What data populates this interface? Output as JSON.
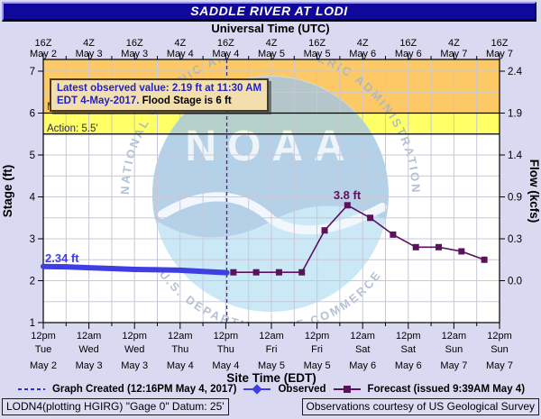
{
  "header": {
    "title": "SADDLE RIVER AT LODI",
    "subtitle": "Universal Time (UTC)"
  },
  "info_box": {
    "line1": "Latest observed value: 2.19 ft at 11:30 AM",
    "line2_highlight": "EDT 4-May-2017.",
    "line2_rest": "Flood Stage is 6 ft"
  },
  "watermark": {
    "acronym": "NOAA",
    "arc_top": "NATIONAL OCEANIC AND ATMOSPHERIC ADMINISTRATION",
    "arc_bottom": "U.S. DEPARTMENT OF COMMERCE"
  },
  "legend": {
    "created": "Graph Created (12:16PM May 4, 2017)",
    "observed": "Observed",
    "forecast": "Forecast (issued 9:39AM May 4)"
  },
  "footer": {
    "left": "LODN4(plotting HGIRG) \"Gage 0\" Datum: 25'",
    "right": "Observations courtesy of US Geological Survey"
  },
  "chart_data": {
    "type": "line",
    "title": "SADDLE RIVER AT LODI",
    "top_axis_label": "Universal Time (UTC)",
    "bottom_axis_label": "Site Time (EDT)",
    "left_axis_label": "Stage (ft)",
    "right_axis_label": "Flow (kcfs)",
    "x_unit": "hours since 12pm EDT Tue May 2, 2017",
    "x_range": [
      0,
      120
    ],
    "stage_range": [
      1,
      7.3
    ],
    "grid": {
      "x_every_hours": 6,
      "y_every_ft": 0.5
    },
    "top_axis_ticks": [
      {
        "z": "16Z",
        "date": "May 2"
      },
      {
        "z": "4Z",
        "date": "May 3"
      },
      {
        "z": "16Z",
        "date": "May 3"
      },
      {
        "z": "4Z",
        "date": "May 4"
      },
      {
        "z": "16Z",
        "date": "May 4"
      },
      {
        "z": "4Z",
        "date": "May 5"
      },
      {
        "z": "16Z",
        "date": "May 5"
      },
      {
        "z": "4Z",
        "date": "May 6"
      },
      {
        "z": "16Z",
        "date": "May 6"
      },
      {
        "z": "4Z",
        "date": "May 7"
      },
      {
        "z": "16Z",
        "date": "May 7"
      }
    ],
    "bottom_axis_ticks": [
      {
        "time": "12pm",
        "day": "Tue",
        "date": "May 2"
      },
      {
        "time": "12am",
        "day": "Wed",
        "date": "May 3"
      },
      {
        "time": "12pm",
        "day": "Wed",
        "date": "May 3"
      },
      {
        "time": "12am",
        "day": "Thu",
        "date": "May 4"
      },
      {
        "time": "12pm",
        "day": "Thu",
        "date": "May 4"
      },
      {
        "time": "12am",
        "day": "Fri",
        "date": "May 5"
      },
      {
        "time": "12pm",
        "day": "Fri",
        "date": "May 5"
      },
      {
        "time": "12am",
        "day": "Sat",
        "date": "May 6"
      },
      {
        "time": "12pm",
        "day": "Sat",
        "date": "May 6"
      },
      {
        "time": "12am",
        "day": "Sun",
        "date": "May 7"
      },
      {
        "time": "12pm",
        "day": "Sun",
        "date": "May 7"
      }
    ],
    "left_axis_ticks": [
      "7",
      "6",
      "5",
      "4",
      "3",
      "2",
      "1"
    ],
    "right_axis_ticks": [
      {
        "label": "2.4",
        "stage": 7
      },
      {
        "label": "1.9",
        "stage": 6
      },
      {
        "label": "1.4",
        "stage": 5
      },
      {
        "label": "0.9",
        "stage": 4
      },
      {
        "label": "0.3",
        "stage": 3
      },
      {
        "label": "0.0",
        "stage": 2
      }
    ],
    "flood_zones": {
      "minor": {
        "label": "Minor: 6.0'",
        "stage": 6.0,
        "color": "#fdc966"
      },
      "action": {
        "label": "Action: 5.5'",
        "stage": 5.5,
        "color": "#ffff66"
      }
    },
    "graph_created_hour": 48.27,
    "latest_observed": {
      "stage_ft": 2.19,
      "time": "11:30 AM EDT 4-May-2017"
    },
    "flood_stage_ft": 6,
    "series": [
      {
        "name": "Observed",
        "color": "#3e3ee3",
        "start_label": "2.34 ft",
        "x_hours": [
          0,
          6,
          12,
          18,
          24,
          30,
          36,
          42,
          48.3
        ],
        "stage_ft": [
          2.34,
          2.33,
          2.31,
          2.29,
          2.27,
          2.26,
          2.25,
          2.22,
          2.19
        ]
      },
      {
        "name": "Forecast",
        "color": "#5c115c",
        "peak_label": "3.8 ft",
        "x_hours": [
          50,
          56,
          62,
          68,
          74,
          80,
          86,
          92,
          98,
          104,
          110,
          116
        ],
        "stage_ft": [
          2.2,
          2.2,
          2.2,
          2.2,
          3.2,
          3.8,
          3.5,
          3.1,
          2.8,
          2.8,
          2.7,
          2.5
        ]
      }
    ]
  },
  "colors": {
    "page_bg": "#d9d9f2",
    "title_bar": "#10089a",
    "plot_bg": "#ffffff",
    "grid": "#c8c8d6",
    "axis": "#000000",
    "observed": "#3e3ee3",
    "forecast": "#5c115c",
    "created_line": "#2929d6",
    "minor_band": "#fdc966",
    "action_band": "#ffff66",
    "info_box_bg": "#f3dfae",
    "watermark_circle": "#bfe3f4",
    "watermark_sky": "#a3c6e2",
    "watermark_text": "#9fb3ca"
  }
}
